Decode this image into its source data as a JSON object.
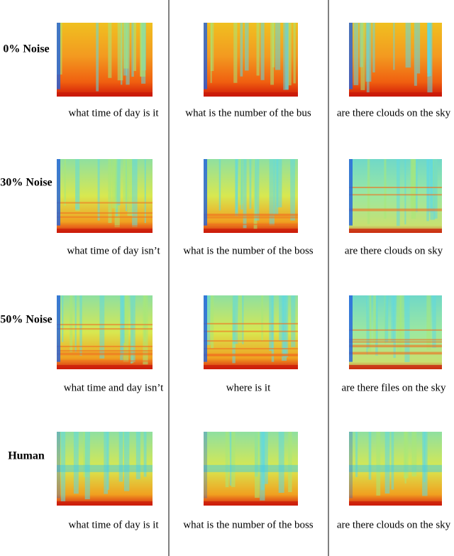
{
  "rows": [
    {
      "label": "0% Noise",
      "captions": [
        "what time of day is it",
        "what is the number of the bus",
        "are there clouds on the sky"
      ]
    },
    {
      "label": "30% Noise",
      "captions": [
        "what time of day isn’t",
        "what is the number of the boss",
        "are there clouds on sky"
      ]
    },
    {
      "label": "50% Noise",
      "captions": [
        "what time and day isn’t",
        "where is it",
        "are there files on the sky"
      ]
    },
    {
      "label": "Human",
      "captions": [
        "what time of day is it",
        "what is the number of the boss",
        "are there clouds on the sky"
      ]
    }
  ]
}
